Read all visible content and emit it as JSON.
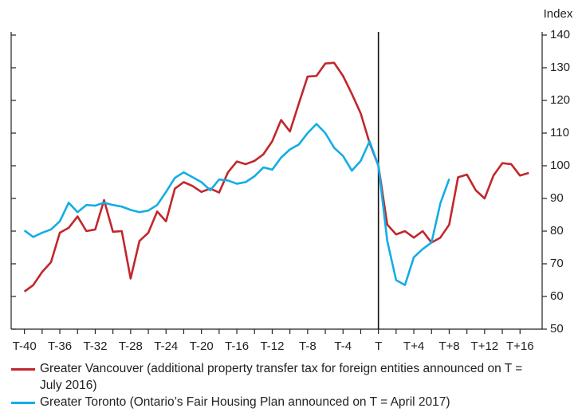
{
  "chart_data": {
    "type": "line",
    "y_axis_label": "Index",
    "xlim": [
      -41.5,
      18.5
    ],
    "ylim": [
      50,
      140
    ],
    "yticks": [
      50,
      60,
      70,
      80,
      90,
      100,
      110,
      120,
      130,
      140
    ],
    "xticks": [
      {
        "value": -40,
        "label": "T-40"
      },
      {
        "value": -36,
        "label": "T-36"
      },
      {
        "value": -32,
        "label": "T-32"
      },
      {
        "value": -28,
        "label": "T-28"
      },
      {
        "value": -24,
        "label": "T-24"
      },
      {
        "value": -20,
        "label": "T-20"
      },
      {
        "value": -16,
        "label": "T-16"
      },
      {
        "value": -12,
        "label": "T-12"
      },
      {
        "value": -8,
        "label": "T-8"
      },
      {
        "value": -4,
        "label": "T-4"
      },
      {
        "value": 0,
        "label": "T"
      },
      {
        "value": 4,
        "label": "T+4"
      },
      {
        "value": 8,
        "label": "T+8"
      },
      {
        "value": 12,
        "label": "T+12"
      },
      {
        "value": 16,
        "label": "T+16"
      }
    ],
    "xminor_ticks": [
      -38,
      -34,
      -30,
      -26,
      -22,
      -18,
      -14,
      -10,
      -6,
      -2,
      2,
      6,
      10,
      14
    ],
    "vline_x": 0,
    "x": [
      -40,
      -39,
      -38,
      -37,
      -36,
      -35,
      -34,
      -33,
      -32,
      -31,
      -30,
      -29,
      -28,
      -27,
      -26,
      -25,
      -24,
      -23,
      -22,
      -21,
      -20,
      -19,
      -18,
      -17,
      -16,
      -15,
      -14,
      -13,
      -12,
      -11,
      -10,
      -9,
      -8,
      -7,
      -6,
      -5,
      -4,
      -3,
      -2,
      -1,
      0,
      1,
      2,
      3,
      4,
      5,
      6,
      7,
      8,
      9,
      10,
      11,
      12,
      13,
      14,
      15,
      16,
      17
    ],
    "series": [
      {
        "name": "Greater Vancouver (additional property transfer tax for foreign entities announced on T = July 2016)",
        "color": "#c1272d",
        "values": [
          61.5,
          63.5,
          67.5,
          70.5,
          79.5,
          81,
          84.5,
          80,
          80.5,
          89.5,
          79.8,
          80,
          65.5,
          77,
          79.5,
          86,
          83,
          93,
          95,
          93.8,
          92,
          93,
          91.8,
          98,
          101.3,
          100.5,
          101.5,
          103.5,
          107.5,
          114,
          110.5,
          119,
          127.3,
          127.5,
          131.3,
          131.5,
          127.5,
          122,
          116,
          107,
          100,
          82,
          79,
          80,
          78,
          80,
          76.5,
          78,
          82,
          96.5,
          97.3,
          92.5,
          90,
          97,
          100.8,
          100.5,
          97,
          97.8
        ]
      },
      {
        "name": "Greater Toronto (Ontario’s Fair Housing Plan announced on T = April 2017)",
        "color": "#13ade6",
        "values": [
          80.2,
          78.2,
          79.5,
          80.5,
          83,
          88.7,
          85.8,
          88,
          87.8,
          88.7,
          88,
          87.5,
          86.5,
          85.8,
          86.3,
          88,
          92,
          96.3,
          98,
          96.5,
          95,
          92.5,
          95.8,
          95.5,
          94.5,
          95,
          96.8,
          99.5,
          98.8,
          102.5,
          105,
          106.5,
          110,
          112.8,
          110,
          105.5,
          103,
          98.5,
          101.5,
          107.5,
          100,
          77,
          65,
          63.5,
          72,
          74.5,
          76.5,
          88.5,
          96,
          null,
          null,
          null,
          null,
          null,
          null,
          null,
          null,
          null
        ]
      }
    ]
  }
}
